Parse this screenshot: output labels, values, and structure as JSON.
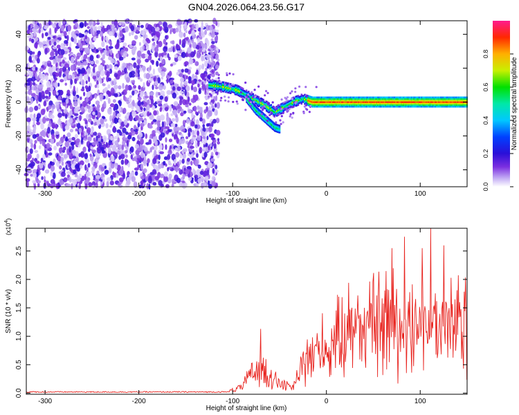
{
  "title": "GN04.2026.064.23.56.G17",
  "chart_data": [
    {
      "type": "heatmap",
      "xlabel": "Height of straight line (km)",
      "ylabel": "Frequency (Hz)",
      "xlim": [
        -320,
        150
      ],
      "ylim": [
        -50,
        48
      ],
      "xticks": [
        -300,
        -200,
        -100,
        0,
        100
      ],
      "yticks": [
        -40,
        -20,
        0,
        20,
        40
      ],
      "colorbar": {
        "label": "Normalized spectral amplitude",
        "range": [
          0,
          1
        ],
        "ticks": [
          0.0,
          0.2,
          0.4,
          0.6,
          0.8
        ]
      },
      "ridge": {
        "x": [
          -125,
          -110,
          -95,
          -85,
          -75,
          -65,
          -55,
          -45,
          -35,
          -25,
          -15,
          0,
          25,
          50,
          75,
          100,
          125,
          150
        ],
        "y": [
          10,
          9,
          7,
          4,
          1,
          -2,
          -6,
          -3,
          0,
          2,
          0,
          0,
          0,
          0,
          0,
          0,
          0,
          0
        ]
      },
      "branch": {
        "x": [
          -85,
          -75,
          -65,
          -55,
          -50
        ],
        "y": [
          2,
          -5,
          -10,
          -15,
          -16
        ]
      }
    },
    {
      "type": "line",
      "xlabel": "Height of straight line (km)",
      "ylabel": "SNR (10 * v/v)",
      "multiplier": "(x10",
      "multiplier_exp": "4",
      "xlim": [
        -320,
        150
      ],
      "ylim": [
        -0.02,
        2.9
      ],
      "xticks": [
        -300,
        -200,
        -100,
        0,
        100
      ],
      "yticks": [
        "0.0",
        "0.5",
        "1.0",
        "1.5",
        "2.0",
        "2.5"
      ],
      "envelope": {
        "x": [
          -320,
          -105,
          -90,
          -80,
          -75,
          -70,
          -65,
          -55,
          -45,
          -35,
          -25,
          -10,
          0,
          10,
          25,
          50,
          75,
          100,
          125,
          140,
          150
        ],
        "y": [
          0.02,
          0.03,
          0.12,
          0.35,
          0.45,
          0.5,
          0.45,
          0.25,
          0.15,
          0.12,
          0.6,
          0.85,
          0.9,
          1.0,
          1.3,
          1.4,
          1.45,
          1.4,
          1.3,
          1.35,
          1.4
        ]
      },
      "peaks": [
        {
          "x": -70,
          "y": 1.13
        },
        {
          "x": 70,
          "y": 2.55
        },
        {
          "x": 83,
          "y": 2.75
        },
        {
          "x": 102,
          "y": 2.55
        },
        {
          "x": 111,
          "y": 2.9
        },
        {
          "x": 125,
          "y": 2.6
        }
      ],
      "color": "#e8231e"
    }
  ]
}
